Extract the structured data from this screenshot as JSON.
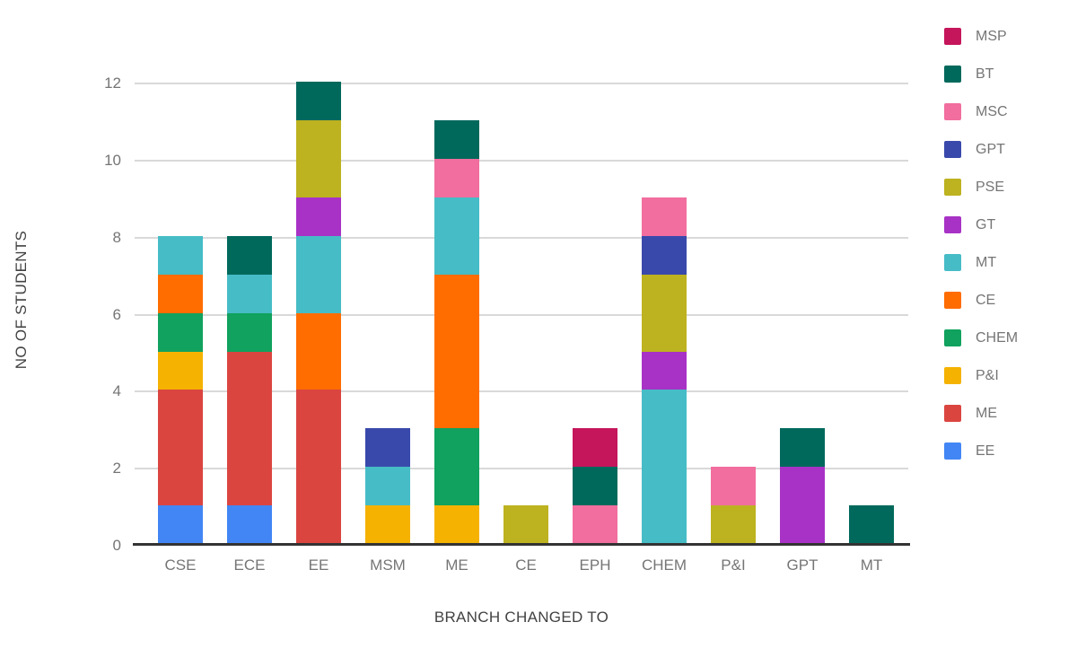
{
  "colors": {
    "background": "#ffffff",
    "gridline": "#d9d9d9",
    "baseline": "#333333",
    "tick_text": "#757575",
    "axis_title_text": "#424242"
  },
  "chart_data": {
    "type": "bar",
    "stacked": true,
    "title": "",
    "xlabel": "BRANCH CHANGED TO",
    "ylabel": "NO OF STUDENTS",
    "ylim": [
      0,
      12.8
    ],
    "yticks": [
      0,
      2,
      4,
      6,
      8,
      10,
      12
    ],
    "grid": true,
    "legend_position": "right",
    "categories": [
      "CSE",
      "ECE",
      "EE",
      "MSM",
      "ME",
      "CE",
      "EPH",
      "CHEM",
      "P&I",
      "GPT",
      "MT"
    ],
    "stack_order_note": "series listed in legend order (top to bottom); bars stack bottom-up in reverse of this order",
    "series": [
      {
        "name": "MSP",
        "color": "#C5155B",
        "values": [
          0,
          0,
          0,
          0,
          0,
          0,
          1,
          0,
          0,
          0,
          0
        ]
      },
      {
        "name": "BT",
        "color": "#00695C",
        "values": [
          0,
          1,
          1,
          0,
          1,
          0,
          1,
          0,
          0,
          1,
          1
        ]
      },
      {
        "name": "MSC",
        "color": "#F16E9E",
        "values": [
          0,
          0,
          0,
          0,
          1,
          0,
          1,
          1,
          1,
          0,
          0
        ]
      },
      {
        "name": "GPT",
        "color": "#3949AB",
        "values": [
          0,
          0,
          0,
          1,
          0,
          0,
          0,
          1,
          0,
          0,
          0
        ]
      },
      {
        "name": "PSE",
        "color": "#BDB220",
        "values": [
          0,
          0,
          2,
          0,
          0,
          1,
          0,
          2,
          1,
          0,
          0
        ]
      },
      {
        "name": "GT",
        "color": "#A832C6",
        "values": [
          0,
          0,
          1,
          0,
          0,
          0,
          0,
          1,
          0,
          2,
          0
        ]
      },
      {
        "name": "MT",
        "color": "#46BCC6",
        "values": [
          1,
          1,
          2,
          1,
          2,
          0,
          0,
          4,
          0,
          0,
          0
        ]
      },
      {
        "name": "CE",
        "color": "#FF6D00",
        "values": [
          1,
          0,
          2,
          0,
          4,
          0,
          0,
          0,
          0,
          0,
          0
        ]
      },
      {
        "name": "CHEM",
        "color": "#10A25E",
        "values": [
          1,
          1,
          0,
          0,
          2,
          0,
          0,
          0,
          0,
          0,
          0
        ]
      },
      {
        "name": "P&I",
        "color": "#F5B201",
        "values": [
          1,
          0,
          0,
          1,
          1,
          0,
          0,
          0,
          0,
          0,
          0
        ]
      },
      {
        "name": "ME",
        "color": "#DB4540",
        "values": [
          3,
          4,
          4,
          0,
          0,
          0,
          0,
          0,
          0,
          0,
          0
        ]
      },
      {
        "name": "EE",
        "color": "#4286F5",
        "values": [
          1,
          1,
          0,
          0,
          0,
          0,
          0,
          0,
          0,
          0,
          0
        ]
      }
    ],
    "bar_totals": {
      "CSE": 8,
      "ECE": 8,
      "EE": 12,
      "MSM": 3,
      "ME": 11,
      "CE": 1,
      "EPH": 3,
      "CHEM": 9,
      "P&I": 2,
      "GPT": 3,
      "MT": 1
    }
  }
}
